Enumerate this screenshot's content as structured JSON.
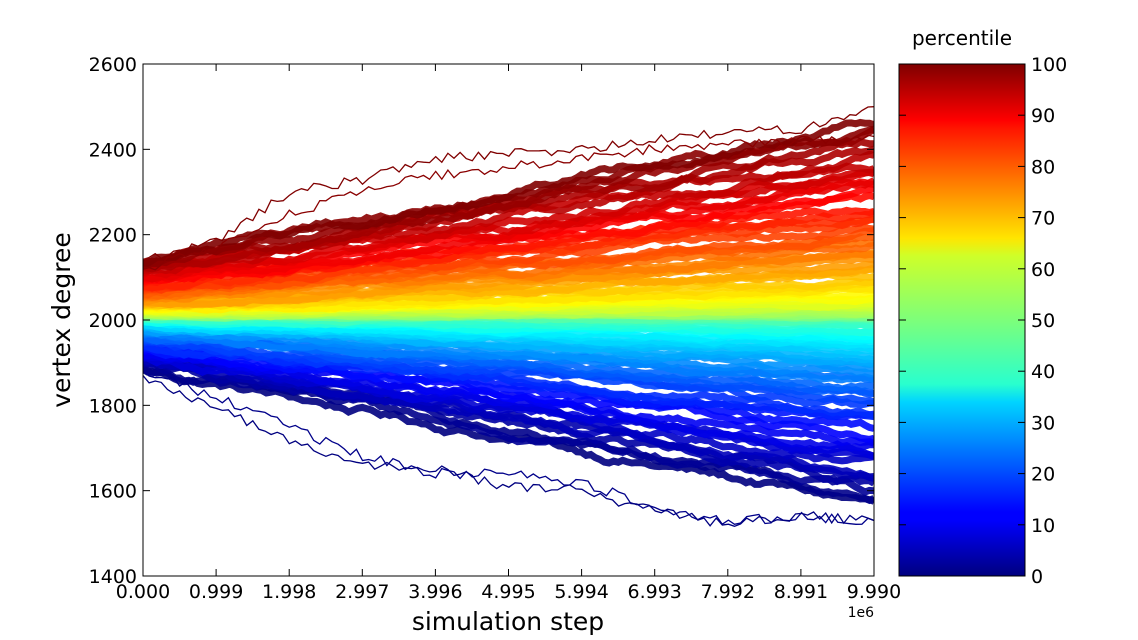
{
  "chart_data": {
    "type": "line",
    "xlabel": "simulation step",
    "ylabel": "vertex degree",
    "x_offset_label": "1e6",
    "x_ticks": [
      "0.000",
      "0.999",
      "1.998",
      "2.997",
      "3.996",
      "4.995",
      "5.994",
      "6.993",
      "7.992",
      "8.991",
      "9.990"
    ],
    "xlim": [
      0,
      9.99
    ],
    "x_scale_multiplier": 1000000,
    "y_ticks": [
      "1400",
      "1600",
      "1800",
      "2000",
      "2200",
      "2400",
      "2600"
    ],
    "ylim": [
      1400,
      2600
    ],
    "grid": false,
    "colormap": "jet",
    "colorbar": {
      "title": "percentile",
      "range": [
        0,
        100
      ],
      "ticks": [
        "0",
        "10",
        "20",
        "30",
        "40",
        "50",
        "60",
        "70",
        "80",
        "90",
        "100"
      ]
    },
    "band": {
      "description_values": {
        "start": {
          "x": 0,
          "min": 1870,
          "max": 2150,
          "median": 2010
        },
        "end": {
          "x": 9.99,
          "min": 1530,
          "max": 2500,
          "median": 2010
        }
      }
    },
    "extreme_series": [
      {
        "percentile": 100,
        "x": [
          0,
          1,
          2,
          3,
          4,
          5,
          6,
          7,
          8,
          9,
          9.99
        ],
        "y": [
          2140,
          2185,
          2300,
          2330,
          2380,
          2390,
          2400,
          2420,
          2440,
          2450,
          2500
        ]
      },
      {
        "percentile": 99,
        "x": [
          0,
          1,
          2,
          3,
          4,
          5,
          6,
          7,
          8,
          9,
          9.99
        ],
        "y": [
          2120,
          2170,
          2250,
          2300,
          2340,
          2360,
          2380,
          2400,
          2410,
          2420,
          2430
        ]
      },
      {
        "percentile": 1,
        "x": [
          0,
          1,
          2,
          3,
          4,
          5,
          6,
          7,
          8,
          9,
          9.99
        ],
        "y": [
          1880,
          1820,
          1750,
          1680,
          1640,
          1640,
          1620,
          1560,
          1530,
          1540,
          1530
        ]
      },
      {
        "percentile": 0,
        "x": [
          0,
          1,
          2,
          3,
          4,
          5,
          6,
          7,
          8,
          9,
          9.99
        ],
        "y": [
          1870,
          1790,
          1720,
          1660,
          1650,
          1610,
          1600,
          1550,
          1520,
          1540,
          1530
        ]
      }
    ],
    "colors": {
      "axis": "#000000",
      "background": "#ffffff"
    }
  }
}
